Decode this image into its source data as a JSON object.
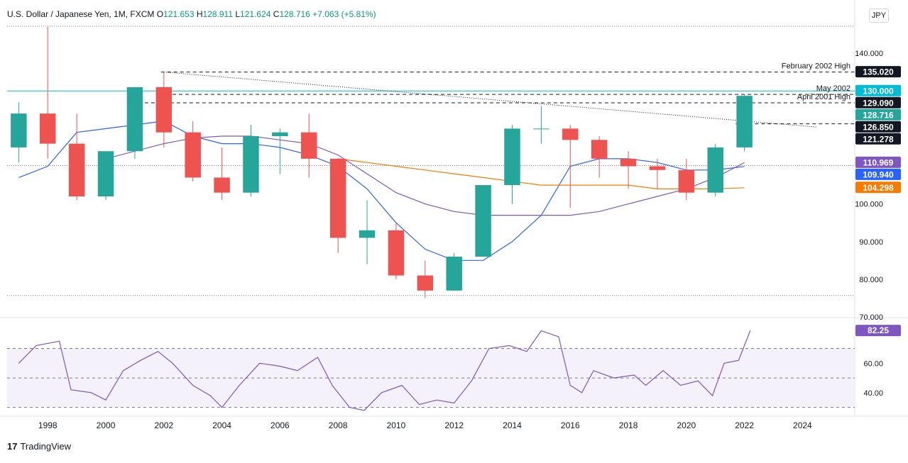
{
  "header": {
    "symbol": "U.S. Dollar / Japanese Yen, 1M, FXCM",
    "open_label": "O",
    "open": "121.653",
    "high_label": "H",
    "high": "128.911",
    "low_label": "L",
    "low": "121.624",
    "close_label": "C",
    "close": "128.716",
    "change": "+7.063 (+5.81%)"
  },
  "currency_button": "JPY",
  "branding": {
    "logo": "17",
    "name": "TradingView"
  },
  "colors": {
    "up": "#26a69a",
    "down": "#ef5350",
    "grid": "#f0f3fa",
    "ma_blue": "#2962ff",
    "ma_purple": "#7e57c2",
    "ma_orange": "#f57c00",
    "rsi": "#7e57c2",
    "rsi_band": "#ede7f6",
    "teal_line": "#22ab94"
  },
  "chart_data": [
    {
      "type": "candlestick",
      "title": "U.S. Dollar / Japanese Yen, 1M, FXCM",
      "x_axis": {
        "range": [
          1996.6,
          2025.8
        ],
        "ticks": [
          "1998",
          "2000",
          "2002",
          "2004",
          "2006",
          "2008",
          "2010",
          "2012",
          "2014",
          "2016",
          "2018",
          "2020",
          "2022",
          "2024"
        ]
      },
      "y_axis": {
        "range": [
          70,
          150
        ],
        "ticks": [
          "70.000",
          "80.000",
          "90.000",
          "100.000",
          "140.000"
        ],
        "side": "right"
      },
      "price_scale_labels": [
        {
          "text": "135.020",
          "value": 135.02,
          "color": "#131722"
        },
        {
          "text": "130.000",
          "value": 130.0,
          "color": "#00bcd4"
        },
        {
          "text": "129.090",
          "value": 129.09,
          "color": "#131722"
        },
        {
          "text": "128.716",
          "value": 128.716,
          "color": "#26a69a"
        },
        {
          "text": "126.850",
          "value": 126.85,
          "color": "#131722"
        },
        {
          "text": "121.278",
          "value": 121.278,
          "color": "#131722"
        },
        {
          "text": "110.969",
          "value": 110.969,
          "color": "#7e57c2"
        },
        {
          "text": "109.940",
          "value": 109.94,
          "color": "#2962ff"
        },
        {
          "text": "104.298",
          "value": 104.298,
          "color": "#f57c00"
        }
      ],
      "annotations": [
        {
          "text": "February 2002 High",
          "value": 135.02
        },
        {
          "text": "May 2002",
          "value": 129.09
        },
        {
          "text": "April 2001 High",
          "value": 126.85
        }
      ],
      "candles_ohlc_yearly_approx": [
        {
          "x": 1997.0,
          "o": 115,
          "h": 127,
          "l": 111,
          "c": 124
        },
        {
          "x": 1998.0,
          "o": 124,
          "h": 147,
          "l": 112,
          "c": 116
        },
        {
          "x": 1999.0,
          "o": 116,
          "h": 124,
          "l": 101,
          "c": 102
        },
        {
          "x": 2000.0,
          "o": 102,
          "h": 114,
          "l": 101,
          "c": 114
        },
        {
          "x": 2001.0,
          "o": 114,
          "h": 131,
          "l": 112,
          "c": 131
        },
        {
          "x": 2002.0,
          "o": 131,
          "h": 135,
          "l": 115,
          "c": 119
        },
        {
          "x": 2003.0,
          "o": 119,
          "h": 122,
          "l": 106,
          "c": 107
        },
        {
          "x": 2004.0,
          "o": 107,
          "h": 115,
          "l": 101,
          "c": 103
        },
        {
          "x": 2005.0,
          "o": 103,
          "h": 121,
          "l": 102,
          "c": 118
        },
        {
          "x": 2006.0,
          "o": 118,
          "h": 120,
          "l": 108,
          "c": 119
        },
        {
          "x": 2007.0,
          "o": 119,
          "h": 124,
          "l": 107,
          "c": 112
        },
        {
          "x": 2008.0,
          "o": 112,
          "h": 112,
          "l": 87,
          "c": 91
        },
        {
          "x": 2009.0,
          "o": 91,
          "h": 101,
          "l": 84,
          "c": 93
        },
        {
          "x": 2010.0,
          "o": 93,
          "h": 95,
          "l": 80,
          "c": 81
        },
        {
          "x": 2011.0,
          "o": 81,
          "h": 85,
          "l": 75,
          "c": 77
        },
        {
          "x": 2012.0,
          "o": 77,
          "h": 87,
          "l": 77,
          "c": 86
        },
        {
          "x": 2013.0,
          "o": 86,
          "h": 105,
          "l": 86,
          "c": 105
        },
        {
          "x": 2014.0,
          "o": 105,
          "h": 121,
          "l": 100,
          "c": 120
        },
        {
          "x": 2015.0,
          "o": 120,
          "h": 126,
          "l": 116,
          "c": 120
        },
        {
          "x": 2016.0,
          "o": 120,
          "h": 121,
          "l": 99,
          "c": 117
        },
        {
          "x": 2017.0,
          "o": 117,
          "h": 118,
          "l": 107,
          "c": 112
        },
        {
          "x": 2018.0,
          "o": 112,
          "h": 114,
          "l": 104,
          "c": 110
        },
        {
          "x": 2019.0,
          "o": 110,
          "h": 112,
          "l": 104,
          "c": 109
        },
        {
          "x": 2020.0,
          "o": 109,
          "h": 112,
          "l": 101,
          "c": 103
        },
        {
          "x": 2021.0,
          "o": 103,
          "h": 116,
          "l": 102,
          "c": 115
        },
        {
          "x": 2022.0,
          "o": 115,
          "h": 128.9,
          "l": 114,
          "c": 128.7
        }
      ]
    },
    {
      "type": "line",
      "title": "RSI",
      "y_axis": {
        "range": [
          25,
          90
        ],
        "ticks": [
          "40.00",
          "60.00"
        ],
        "bands": [
          70,
          50,
          30
        ]
      },
      "last_value_label": {
        "text": "82.25",
        "value": 82.25
      },
      "values_approx": [
        {
          "x": 1997.0,
          "y": 60
        },
        {
          "x": 1997.6,
          "y": 72
        },
        {
          "x": 1998.4,
          "y": 75
        },
        {
          "x": 1998.8,
          "y": 42
        },
        {
          "x": 1999.5,
          "y": 40
        },
        {
          "x": 2000.0,
          "y": 35
        },
        {
          "x": 2000.6,
          "y": 55
        },
        {
          "x": 2001.2,
          "y": 62
        },
        {
          "x": 2001.8,
          "y": 68
        },
        {
          "x": 2002.3,
          "y": 60
        },
        {
          "x": 2003.0,
          "y": 45
        },
        {
          "x": 2003.6,
          "y": 38
        },
        {
          "x": 2004.0,
          "y": 30
        },
        {
          "x": 2004.6,
          "y": 45
        },
        {
          "x": 2005.3,
          "y": 60
        },
        {
          "x": 2006.0,
          "y": 58
        },
        {
          "x": 2006.6,
          "y": 55
        },
        {
          "x": 2007.3,
          "y": 64
        },
        {
          "x": 2007.8,
          "y": 45
        },
        {
          "x": 2008.4,
          "y": 30
        },
        {
          "x": 2008.9,
          "y": 28
        },
        {
          "x": 2009.5,
          "y": 40
        },
        {
          "x": 2010.2,
          "y": 45
        },
        {
          "x": 2010.8,
          "y": 32
        },
        {
          "x": 2011.4,
          "y": 35
        },
        {
          "x": 2012.0,
          "y": 33
        },
        {
          "x": 2012.6,
          "y": 48
        },
        {
          "x": 2013.2,
          "y": 70
        },
        {
          "x": 2013.9,
          "y": 72
        },
        {
          "x": 2014.5,
          "y": 68
        },
        {
          "x": 2015.0,
          "y": 82
        },
        {
          "x": 2015.6,
          "y": 78
        },
        {
          "x": 2016.0,
          "y": 45
        },
        {
          "x": 2016.4,
          "y": 40
        },
        {
          "x": 2016.8,
          "y": 55
        },
        {
          "x": 2017.5,
          "y": 50
        },
        {
          "x": 2018.2,
          "y": 52
        },
        {
          "x": 2018.6,
          "y": 45
        },
        {
          "x": 2019.2,
          "y": 55
        },
        {
          "x": 2019.8,
          "y": 45
        },
        {
          "x": 2020.4,
          "y": 48
        },
        {
          "x": 2020.9,
          "y": 38
        },
        {
          "x": 2021.3,
          "y": 60
        },
        {
          "x": 2021.8,
          "y": 62
        },
        {
          "x": 2022.2,
          "y": 82.25
        }
      ]
    }
  ]
}
